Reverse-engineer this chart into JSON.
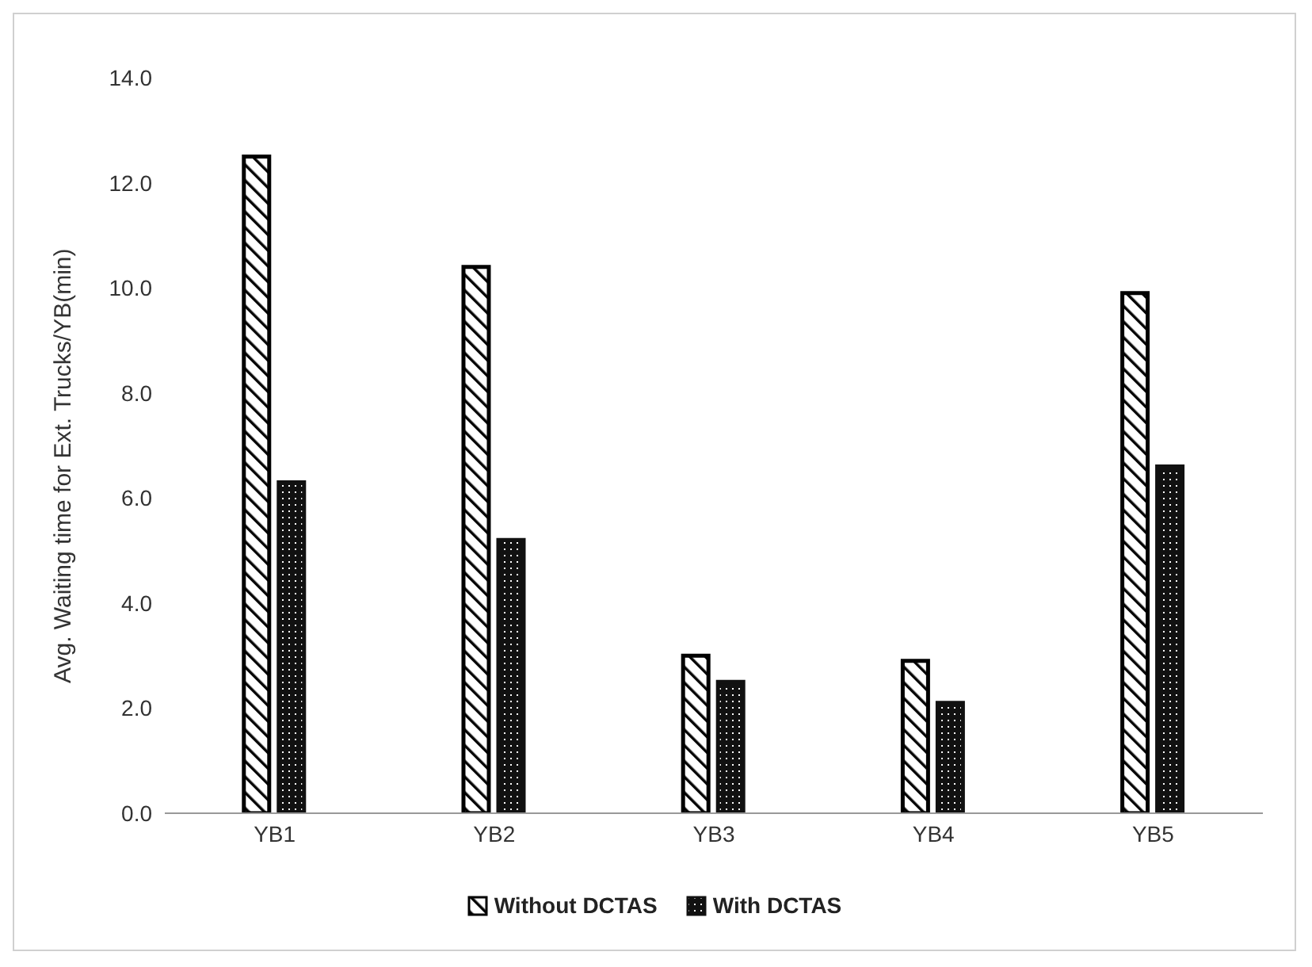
{
  "chart_data": {
    "type": "bar",
    "ylabel": "Avg. Waiting time for Ext. Trucks/YB(min)",
    "categories": [
      "YB1",
      "YB2",
      "YB3",
      "YB4",
      "YB5"
    ],
    "series": [
      {
        "name": "Without DCTAS",
        "color": "#000000",
        "values": [
          12.5,
          10.4,
          3.0,
          2.9,
          9.9
        ]
      },
      {
        "name": "With DCTAS",
        "color": "#111111",
        "values": [
          6.3,
          5.2,
          2.5,
          2.1,
          6.6
        ]
      }
    ],
    "ylim": [
      0,
      14
    ],
    "yticks": [
      {
        "value": 0,
        "label": "0.0"
      },
      {
        "value": 2,
        "label": "2.0"
      },
      {
        "value": 4,
        "label": "4.0"
      },
      {
        "value": 6,
        "label": "6.0"
      },
      {
        "value": 8,
        "label": "8.0"
      },
      {
        "value": 10,
        "label": "10.0"
      },
      {
        "value": 12,
        "label": "12.0"
      },
      {
        "value": 14,
        "label": "14.0"
      }
    ],
    "grid": false,
    "legend": "bottom"
  }
}
